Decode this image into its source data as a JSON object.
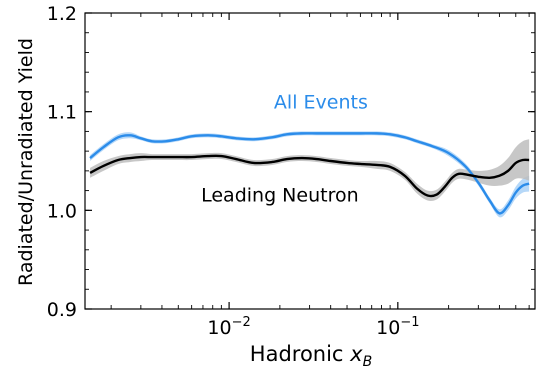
{
  "chart_data": {
    "type": "line",
    "xlabel_prefix": "Hadronic ",
    "xlabel_var": "x",
    "xlabel_sub": "B",
    "ylabel": "Radiated/Unradiated Yield",
    "xscale": "log",
    "xlim": [
      0.0014,
      0.65
    ],
    "ylim": [
      0.9,
      1.2
    ],
    "yticks": [
      0.9,
      1.0,
      1.1,
      1.2
    ],
    "ytick_labels": [
      "0.9",
      "1.0",
      "1.1",
      "1.2"
    ],
    "xticks_major": [
      {
        "base": "10",
        "exp": "−2",
        "value": 0.01
      },
      {
        "base": "10",
        "exp": "−1",
        "value": 0.1
      }
    ],
    "grid": false,
    "series": [
      {
        "name": "All Events",
        "color": "#2b8cea",
        "band_color": "#a9d1f7",
        "x": [
          0.0015,
          0.0018,
          0.0022,
          0.0026,
          0.003,
          0.0035,
          0.0042,
          0.005,
          0.006,
          0.0075,
          0.009,
          0.011,
          0.014,
          0.018,
          0.022,
          0.027,
          0.033,
          0.04,
          0.05,
          0.06,
          0.075,
          0.09,
          0.11,
          0.13,
          0.16,
          0.2,
          0.25,
          0.3,
          0.35,
          0.4,
          0.45,
          0.5,
          0.55,
          0.6
        ],
        "y": [
          1.053,
          1.064,
          1.074,
          1.076,
          1.073,
          1.07,
          1.07,
          1.072,
          1.075,
          1.076,
          1.075,
          1.073,
          1.072,
          1.074,
          1.077,
          1.078,
          1.078,
          1.078,
          1.078,
          1.078,
          1.078,
          1.077,
          1.074,
          1.07,
          1.065,
          1.058,
          1.045,
          1.028,
          1.01,
          0.997,
          1.005,
          1.018,
          1.025,
          1.027
        ],
        "band": [
          0.003,
          0.003,
          0.003,
          0.003,
          0.002,
          0.002,
          0.002,
          0.002,
          0.002,
          0.002,
          0.002,
          0.002,
          0.002,
          0.002,
          0.002,
          0.002,
          0.002,
          0.002,
          0.002,
          0.002,
          0.002,
          0.002,
          0.002,
          0.002,
          0.002,
          0.003,
          0.003,
          0.003,
          0.003,
          0.004,
          0.005,
          0.006,
          0.007,
          0.008
        ]
      },
      {
        "name": "Leading Neutron",
        "color": "#000000",
        "band_color": "#bdbdbd",
        "x": [
          0.0015,
          0.0018,
          0.0022,
          0.0026,
          0.003,
          0.0035,
          0.0042,
          0.005,
          0.006,
          0.0075,
          0.009,
          0.011,
          0.014,
          0.018,
          0.022,
          0.027,
          0.033,
          0.04,
          0.05,
          0.06,
          0.075,
          0.09,
          0.11,
          0.13,
          0.15,
          0.17,
          0.19,
          0.21,
          0.23,
          0.26,
          0.3,
          0.35,
          0.4,
          0.45,
          0.5,
          0.55,
          0.6
        ],
        "y": [
          1.038,
          1.045,
          1.051,
          1.053,
          1.054,
          1.054,
          1.054,
          1.054,
          1.054,
          1.055,
          1.055,
          1.052,
          1.048,
          1.049,
          1.052,
          1.053,
          1.052,
          1.05,
          1.048,
          1.047,
          1.046,
          1.044,
          1.035,
          1.022,
          1.015,
          1.016,
          1.024,
          1.033,
          1.037,
          1.036,
          1.034,
          1.033,
          1.035,
          1.04,
          1.048,
          1.051,
          1.051
        ],
        "band": [
          0.005,
          0.005,
          0.004,
          0.004,
          0.004,
          0.003,
          0.003,
          0.003,
          0.003,
          0.003,
          0.003,
          0.003,
          0.003,
          0.003,
          0.003,
          0.003,
          0.003,
          0.003,
          0.003,
          0.003,
          0.004,
          0.004,
          0.004,
          0.005,
          0.005,
          0.005,
          0.005,
          0.005,
          0.005,
          0.005,
          0.006,
          0.008,
          0.01,
          0.013,
          0.016,
          0.019,
          0.021
        ]
      }
    ],
    "annotations": [
      {
        "text": "All Events",
        "series": 0,
        "anchor_x": 0.035,
        "anchor_y": 1.103
      },
      {
        "text": "Leading Neutron",
        "series": 1,
        "anchor_x": 0.02,
        "anchor_y": 1.009
      }
    ]
  }
}
